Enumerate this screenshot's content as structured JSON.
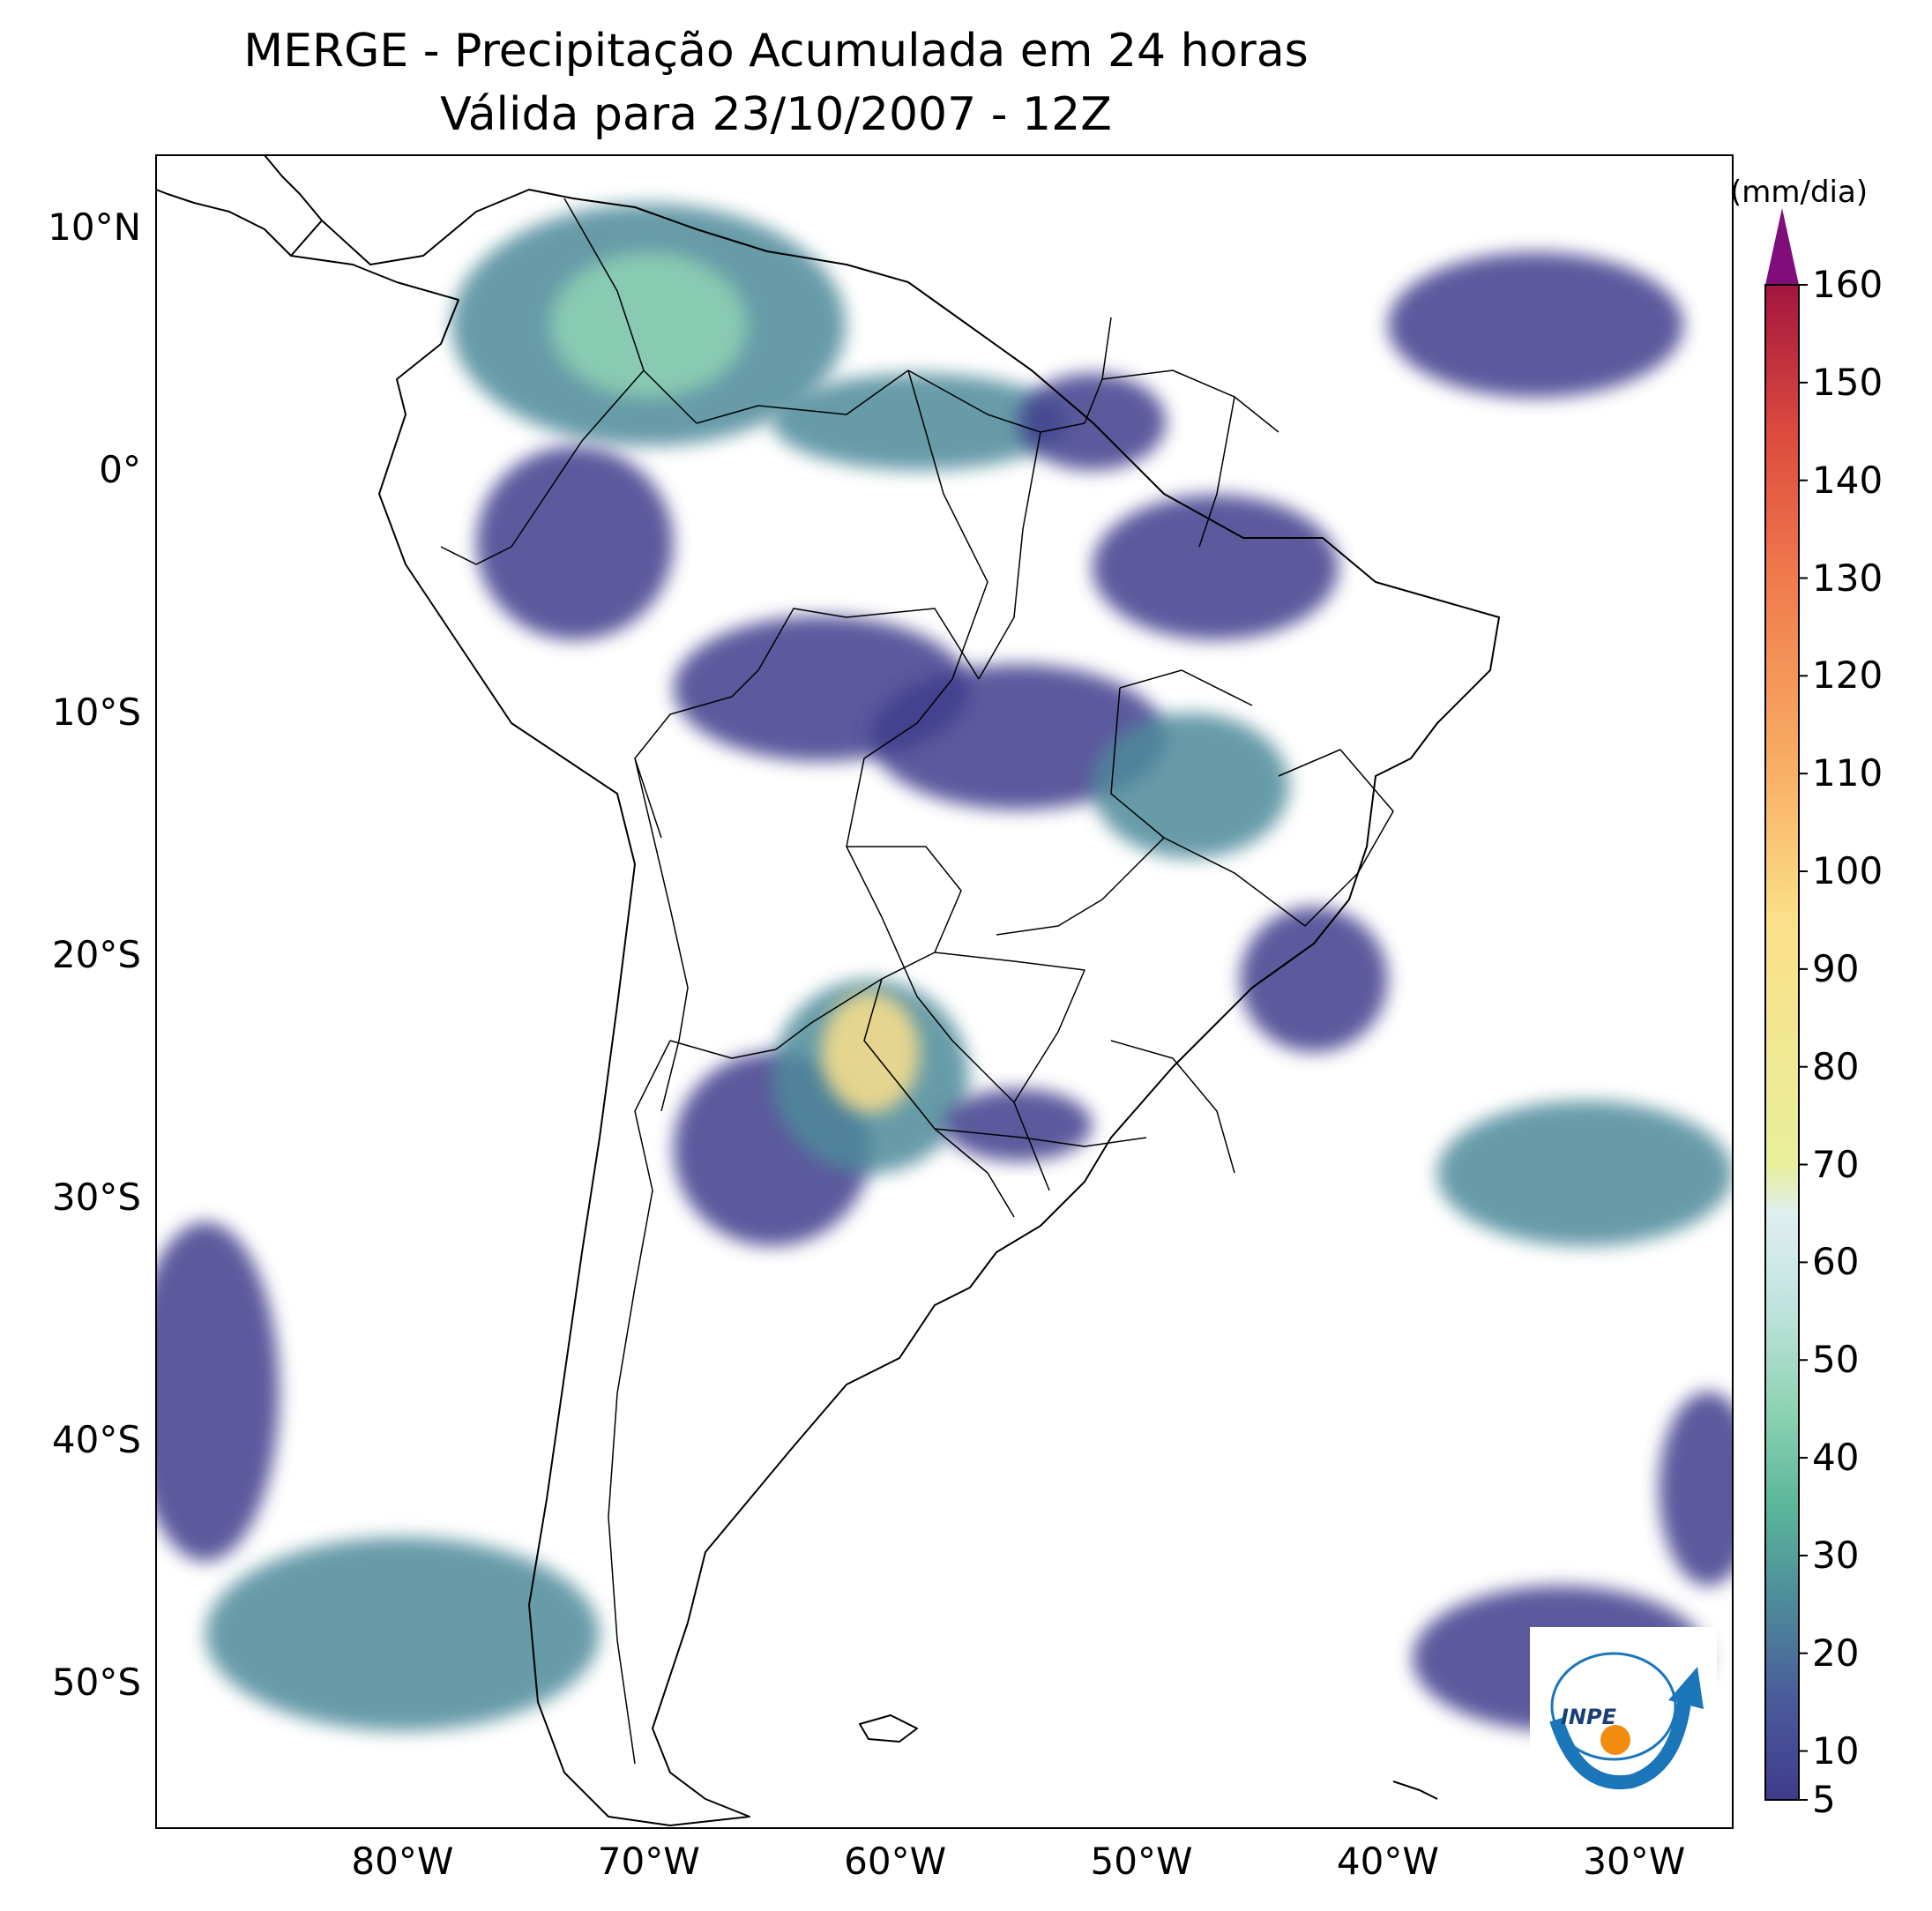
{
  "title": {
    "line1": "MERGE - Precipitação Acumulada em 24 horas",
    "line2": "Válida para 23/10/2007 - 12Z"
  },
  "map": {
    "extent": {
      "lon": [
        -90,
        -26
      ],
      "lat": [
        -56,
        13
      ]
    },
    "lat_ticks": [
      {
        "lat": 10,
        "label": "10°N"
      },
      {
        "lat": 0,
        "label": "0°"
      },
      {
        "lat": -10,
        "label": "10°S"
      },
      {
        "lat": -20,
        "label": "20°S"
      },
      {
        "lat": -30,
        "label": "30°S"
      },
      {
        "lat": -40,
        "label": "40°S"
      },
      {
        "lat": -50,
        "label": "50°S"
      }
    ],
    "lon_ticks": [
      {
        "lon": -80,
        "label": "80°W"
      },
      {
        "lon": -70,
        "label": "70°W"
      },
      {
        "lon": -60,
        "label": "60°W"
      },
      {
        "lon": -50,
        "label": "50°W"
      },
      {
        "lon": -40,
        "label": "40°W"
      },
      {
        "lon": -30,
        "label": "30°W"
      }
    ],
    "rain_areas": [
      {
        "name": "colombia-venezuela",
        "lon": -70,
        "lat": 6,
        "rx": 8,
        "ry": 5,
        "level": 2
      },
      {
        "name": "colombia-core",
        "lon": -70,
        "lat": 6,
        "rx": 4,
        "ry": 3,
        "level": 3
      },
      {
        "name": "ecuador-peru",
        "lon": -73,
        "lat": -3,
        "rx": 4,
        "ry": 4,
        "level": 1
      },
      {
        "name": "guyana",
        "lon": -59,
        "lat": 2,
        "rx": 6,
        "ry": 2,
        "level": 2
      },
      {
        "name": "amapa",
        "lon": -52,
        "lat": 2,
        "rx": 3,
        "ry": 2,
        "level": 1
      },
      {
        "name": "para-maranhao",
        "lon": -47,
        "lat": -4,
        "rx": 5,
        "ry": 3,
        "level": 1
      },
      {
        "name": "rondonia",
        "lon": -63,
        "lat": -9,
        "rx": 6,
        "ry": 3,
        "level": 1
      },
      {
        "name": "mato-grosso",
        "lon": -55,
        "lat": -11,
        "rx": 6,
        "ry": 3,
        "level": 1
      },
      {
        "name": "goias",
        "lon": -48,
        "lat": -13,
        "rx": 4,
        "ry": 3,
        "level": 2
      },
      {
        "name": "minas-rio",
        "lon": -43,
        "lat": -21,
        "rx": 3,
        "ry": 3,
        "level": 1
      },
      {
        "name": "argentina-north",
        "lon": -65,
        "lat": -28,
        "rx": 4,
        "ry": 4,
        "level": 1
      },
      {
        "name": "paraguay-core",
        "lon": -61,
        "lat": -25,
        "rx": 4,
        "ry": 4,
        "level": 2
      },
      {
        "name": "paraguay-max",
        "lon": -61,
        "lat": -24,
        "rx": 2,
        "ry": 2.5,
        "level": 4
      },
      {
        "name": "south-brazil",
        "lon": -55,
        "lat": -27,
        "rx": 3,
        "ry": 1.5,
        "level": 1
      },
      {
        "name": "atlantic-north",
        "lon": -34,
        "lat": 6,
        "rx": 6,
        "ry": 3,
        "level": 1
      },
      {
        "name": "atlantic-south",
        "lon": -32,
        "lat": -29,
        "rx": 6,
        "ry": 3,
        "level": 2
      },
      {
        "name": "pacific-patagonia",
        "lon": -80,
        "lat": -48,
        "rx": 8,
        "ry": 4,
        "level": 2
      },
      {
        "name": "pacific-west",
        "lon": -88,
        "lat": -38,
        "rx": 3,
        "ry": 7,
        "level": 1
      },
      {
        "name": "south-atlantic-low",
        "lon": -33,
        "lat": -49,
        "rx": 6,
        "ry": 3,
        "level": 1
      },
      {
        "name": "atlantic-southeast",
        "lon": -27,
        "lat": -42,
        "rx": 2,
        "ry": 4,
        "level": 1
      }
    ]
  },
  "colorbar": {
    "unit": "(mm/dia)",
    "min": 5,
    "max": 160,
    "ticks": [
      "5",
      "10",
      "20",
      "30",
      "40",
      "50",
      "60",
      "70",
      "80",
      "90",
      "100",
      "110",
      "120",
      "130",
      "140",
      "150",
      "160"
    ],
    "stops": [
      {
        "value": 5,
        "color": "#3f3c8c"
      },
      {
        "value": 15,
        "color": "#4a5a9a"
      },
      {
        "value": 25,
        "color": "#4d8a9a"
      },
      {
        "value": 35,
        "color": "#5ab69a"
      },
      {
        "value": 45,
        "color": "#8ed3b4"
      },
      {
        "value": 55,
        "color": "#bfe3dc"
      },
      {
        "value": 65,
        "color": "#dfeff0"
      },
      {
        "value": 70,
        "color": "#e8ef9a"
      },
      {
        "value": 95,
        "color": "#fbe08a"
      },
      {
        "value": 110,
        "color": "#f9b066"
      },
      {
        "value": 130,
        "color": "#f07a4c"
      },
      {
        "value": 145,
        "color": "#dc4a3e"
      },
      {
        "value": 160,
        "color": "#a3153f"
      }
    ],
    "extend_color": "#800e7a"
  },
  "logo": {
    "text": "INPE"
  }
}
